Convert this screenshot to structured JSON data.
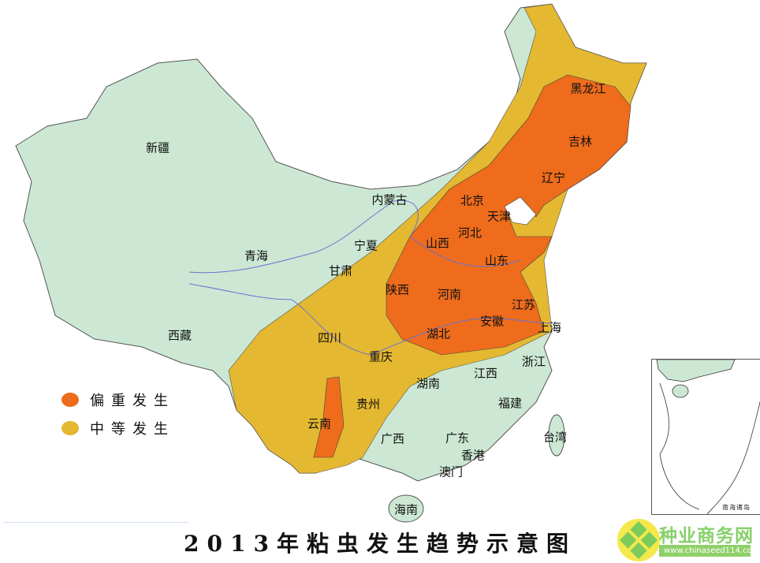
{
  "title": "2013年粘虫发生趋势示意图",
  "legend": [
    {
      "label": "偏重发生",
      "color": "#ee6c1c"
    },
    {
      "label": "中等发生",
      "color": "#e4b830"
    }
  ],
  "base_color": "#cce8d4",
  "provinces": {
    "xinjiang": "新疆",
    "xizang": "西藏",
    "qinghai": "青海",
    "neimenggu": "内蒙古",
    "heilongjiang": "黑龙江",
    "jilin": "吉林",
    "liaoning": "辽宁",
    "beijing": "北京",
    "tianjin": "天津",
    "hebei": "河北",
    "shanxi": "山西",
    "shandong": "山东",
    "ningxia": "宁夏",
    "gansu": "甘肃",
    "shaanxi": "陕西",
    "henan": "河南",
    "jiangsu": "江苏",
    "anhui": "安徽",
    "shanghai": "上海",
    "hubei": "湖北",
    "sichuan": "四川",
    "chongqing": "重庆",
    "zhejiang": "浙江",
    "jiangxi": "江西",
    "hunan": "湖南",
    "guizhou": "贵州",
    "fujian": "福建",
    "yunnan": "云南",
    "guangxi": "广西",
    "guangdong": "广东",
    "taiwan": "台湾",
    "xianggang": "香港",
    "aomen": "澳门",
    "hainan": "海南"
  },
  "inset_label": "南海诸岛",
  "watermark": {
    "name": "种业商务网",
    "url": "www.chinaseed114.com"
  }
}
